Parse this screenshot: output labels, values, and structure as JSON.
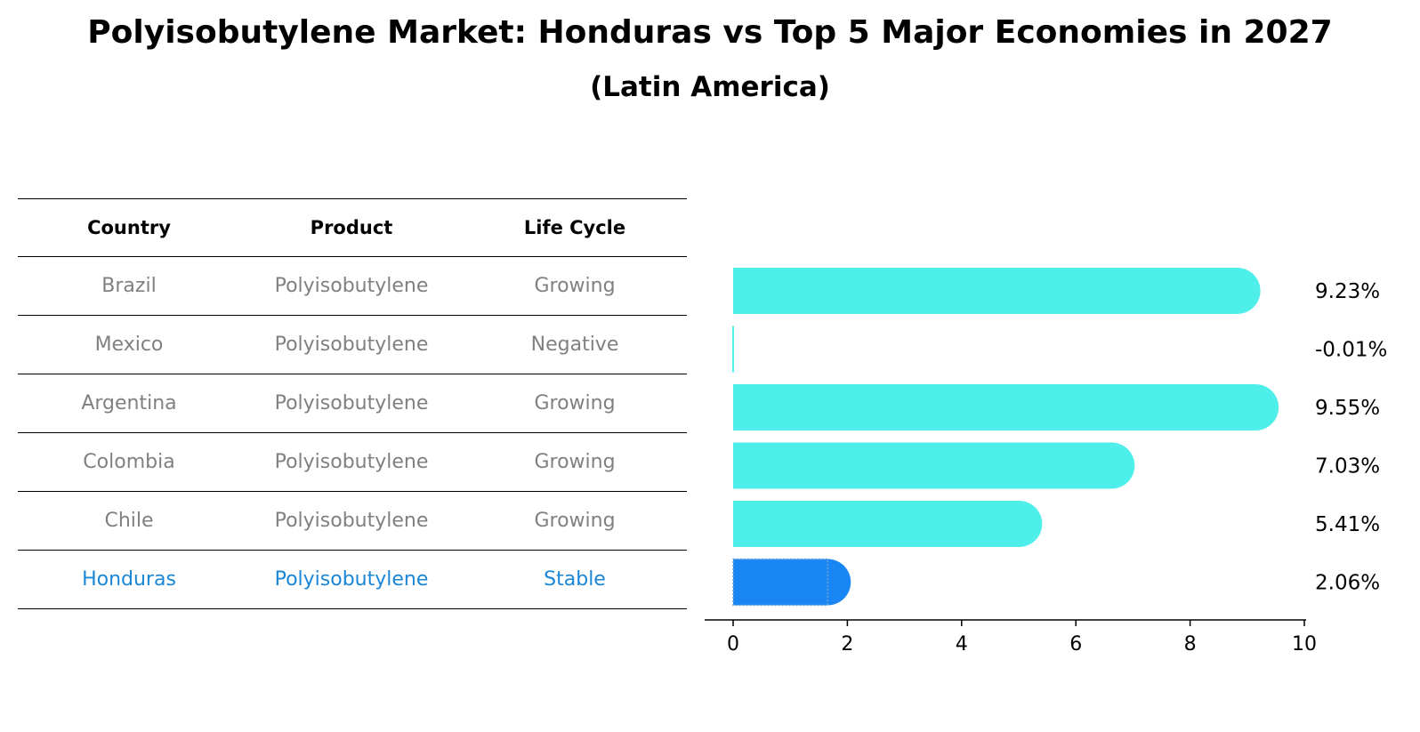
{
  "title": "Polyisobutylene Market: Honduras vs Top 5 Major Economies in 2027",
  "subtitle": "(Latin America)",
  "table": {
    "headers": [
      "Country",
      "Product",
      "Life Cycle"
    ],
    "rows": [
      {
        "country": "Brazil",
        "product": "Polyisobutylene",
        "life_cycle": "Growing"
      },
      {
        "country": "Mexico",
        "product": "Polyisobutylene",
        "life_cycle": "Negative"
      },
      {
        "country": "Argentina",
        "product": "Polyisobutylene",
        "life_cycle": "Growing"
      },
      {
        "country": "Colombia",
        "product": "Polyisobutylene",
        "life_cycle": "Growing"
      },
      {
        "country": "Chile",
        "product": "Polyisobutylene",
        "life_cycle": "Growing"
      },
      {
        "country": "Honduras",
        "product": "Polyisobutylene",
        "life_cycle": "Stable"
      }
    ]
  },
  "chart_data": {
    "type": "bar",
    "orientation": "horizontal",
    "categories": [
      "Brazil",
      "Mexico",
      "Argentina",
      "Colombia",
      "Chile",
      "Honduras"
    ],
    "values": [
      9.23,
      -0.01,
      9.55,
      7.03,
      5.41,
      2.06
    ],
    "value_labels": [
      "9.23%",
      "-0.01%",
      "9.55%",
      "7.03%",
      "5.41%",
      "2.06%"
    ],
    "highlight": "Honduras",
    "xlim": [
      0,
      10
    ],
    "xticks": [
      0,
      2,
      4,
      6,
      8,
      10
    ],
    "xtick_labels": [
      "0",
      "2",
      "4",
      "6",
      "8",
      "10"
    ],
    "colors": {
      "default": "#4eeeea",
      "highlight": "#1a86f5"
    }
  }
}
